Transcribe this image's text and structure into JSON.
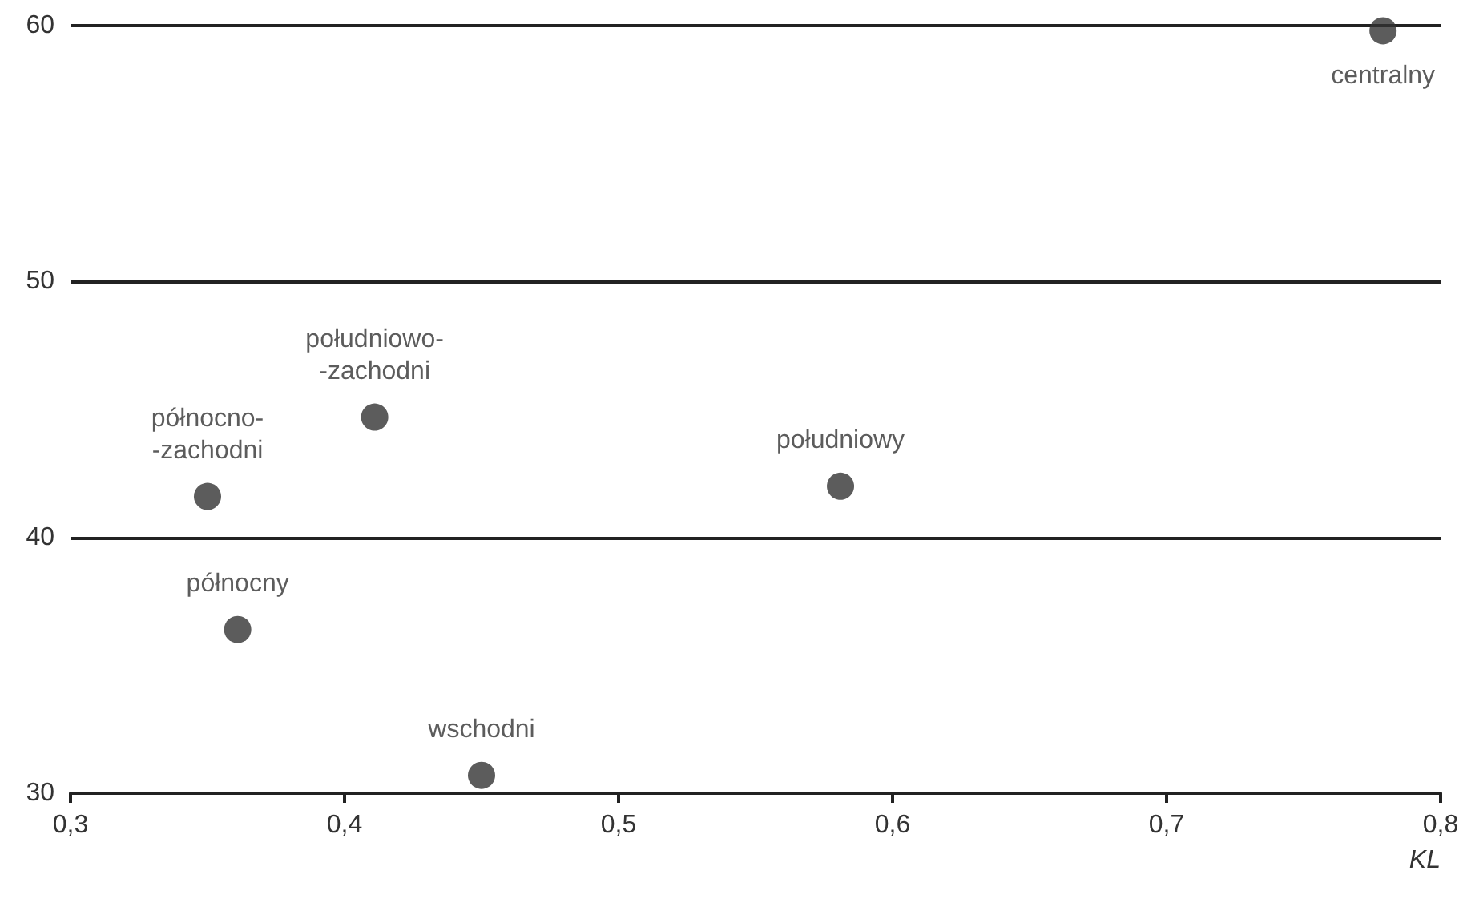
{
  "chart_data": {
    "type": "scatter",
    "xlabel": "KL",
    "series": [
      {
        "name": "centralny",
        "color": "#333333",
        "x": [
          0.779
        ],
        "values": [
          59.8
        ]
      },
      {
        "name": "południowo-\n-zachodni",
        "color": "#333333",
        "x": [
          0.411
        ],
        "values": [
          44.7
        ]
      },
      {
        "name": "północno-\n-zachodni",
        "color": "#333333",
        "x": [
          0.35
        ],
        "values": [
          41.6
        ]
      },
      {
        "name": "południowy",
        "color": "#333333",
        "x": [
          0.581
        ],
        "values": [
          42.0
        ]
      },
      {
        "name": "północny",
        "color": "#333333",
        "x": [
          0.361
        ],
        "values": [
          36.4
        ]
      },
      {
        "name": "wschodni",
        "color": "#333333",
        "x": [
          0.45
        ],
        "values": [
          30.7
        ]
      }
    ],
    "xlim": [
      0.3,
      0.8
    ],
    "xticks": [
      {
        "value": 0.3,
        "label": "0,3"
      },
      {
        "value": 0.4,
        "label": "0,4"
      },
      {
        "value": 0.5,
        "label": "0,5"
      },
      {
        "value": 0.6,
        "label": "0,6"
      },
      {
        "value": 0.7,
        "label": "0,7"
      },
      {
        "value": 0.8,
        "label": "0,8"
      }
    ],
    "ylim": [
      30,
      60
    ],
    "yticks": [
      30,
      40,
      50,
      60
    ],
    "grid": "y",
    "legend": false,
    "marker": "circle"
  }
}
